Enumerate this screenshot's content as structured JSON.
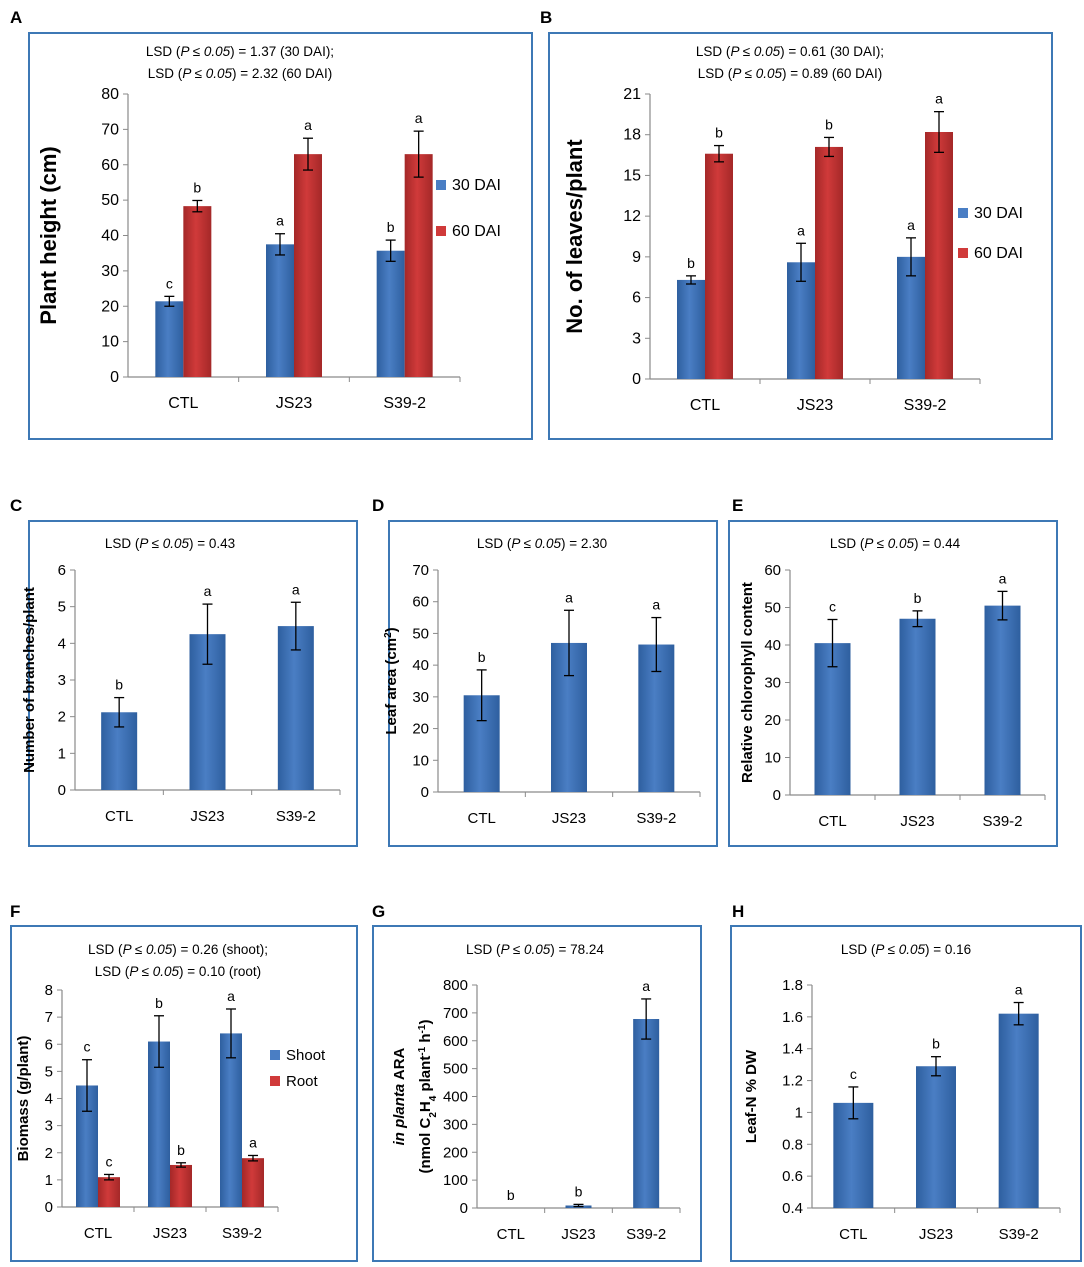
{
  "colors": {
    "frame": "#3d78b5",
    "blue": "#4a7ec4",
    "blue_dark": "#2e5f9f",
    "red": "#d03a3a",
    "red_dark": "#a42828"
  },
  "chart_data": [
    {
      "id": "A",
      "type": "bar",
      "panel_label": "A",
      "lsd_lines": [
        {
          "pre": "LSD (",
          "p": "P ≤ 0.05",
          "post": ") = 1.37 (30 DAI);"
        },
        {
          "pre": "LSD (",
          "p": "P ≤ 0.05",
          "post": ") = 2.32 (60 DAI)"
        }
      ],
      "ylabel": "Plant height (cm)",
      "ylabel_bold": true,
      "ylim": [
        0,
        80
      ],
      "yticks": [
        "0",
        "10",
        "20",
        "30",
        "40",
        "50",
        "60",
        "70",
        "80"
      ],
      "categories": [
        "CTL",
        "JS23",
        "S39-2"
      ],
      "series": [
        {
          "name": "30 DAI",
          "color": "blue",
          "values": [
            21.4,
            37.5,
            35.7
          ],
          "errors": [
            1.4,
            3.0,
            3.0
          ],
          "letters": [
            "c",
            "a",
            "b"
          ]
        },
        {
          "name": "60 DAI",
          "color": "red",
          "values": [
            48.3,
            63.0,
            63.0
          ],
          "errors": [
            1.6,
            4.5,
            6.5
          ],
          "letters": [
            "b",
            "a",
            "a"
          ]
        }
      ],
      "legend": [
        "30 DAI",
        "60 DAI"
      ]
    },
    {
      "id": "B",
      "type": "bar",
      "panel_label": "B",
      "lsd_lines": [
        {
          "pre": "LSD (",
          "p": "P ≤ 0.05",
          "post": ") = 0.61 (30 DAI);"
        },
        {
          "pre": "LSD (",
          "p": "P ≤ 0.05",
          "post": ") = 0.89 (60 DAI)"
        }
      ],
      "ylabel": "No. of leaves/plant",
      "ylabel_bold": true,
      "ylim": [
        0,
        21
      ],
      "yticks": [
        "0",
        "3",
        "6",
        "9",
        "12",
        "15",
        "18",
        "21"
      ],
      "categories": [
        "CTL",
        "JS23",
        "S39-2"
      ],
      "series": [
        {
          "name": "30 DAI",
          "color": "blue",
          "values": [
            7.3,
            8.6,
            9.0
          ],
          "errors": [
            0.3,
            1.4,
            1.4
          ],
          "letters": [
            "b",
            "a",
            "a"
          ]
        },
        {
          "name": "60 DAI",
          "color": "red",
          "values": [
            16.6,
            17.1,
            18.2
          ],
          "errors": [
            0.6,
            0.7,
            1.5
          ],
          "letters": [
            "b",
            "b",
            "a"
          ]
        }
      ],
      "legend": [
        "30 DAI",
        "60 DAI"
      ]
    },
    {
      "id": "C",
      "type": "bar",
      "panel_label": "C",
      "lsd_lines": [
        {
          "pre": "LSD (",
          "p": "P ≤ 0.05",
          "post": ") = 0.43"
        }
      ],
      "ylabel": "Number of branches/plant",
      "ylim": [
        0,
        6
      ],
      "yticks": [
        "0",
        "1",
        "2",
        "3",
        "4",
        "5",
        "6"
      ],
      "categories": [
        "CTL",
        "JS23",
        "S39-2"
      ],
      "series": [
        {
          "name": "",
          "color": "blue",
          "values": [
            2.12,
            4.25,
            4.47
          ],
          "errors": [
            0.4,
            0.82,
            0.65
          ],
          "letters": [
            "b",
            "a",
            "a"
          ]
        }
      ]
    },
    {
      "id": "D",
      "type": "bar",
      "panel_label": "D",
      "lsd_lines": [
        {
          "pre": "LSD (",
          "p": "P ≤ 0.05",
          "post": ") = 2.30"
        }
      ],
      "ylabel": "Leaf area (cm²)",
      "ylim": [
        0,
        70
      ],
      "yticks": [
        "0",
        "10",
        "20",
        "30",
        "40",
        "50",
        "60",
        "70"
      ],
      "categories": [
        "CTL",
        "JS23",
        "S39-2"
      ],
      "series": [
        {
          "name": "",
          "color": "blue",
          "values": [
            30.5,
            47.0,
            46.5
          ],
          "errors": [
            8.0,
            10.3,
            8.5
          ],
          "letters": [
            "b",
            "a",
            "a"
          ]
        }
      ]
    },
    {
      "id": "E",
      "type": "bar",
      "panel_label": "E",
      "lsd_lines": [
        {
          "pre": "LSD (",
          "p": "P ≤ 0.05",
          "post": ") = 0.44"
        }
      ],
      "ylabel": "Relative chlorophyll content",
      "ylim": [
        0,
        60
      ],
      "yticks": [
        "0",
        "10",
        "20",
        "30",
        "40",
        "50",
        "60"
      ],
      "categories": [
        "CTL",
        "JS23",
        "S39-2"
      ],
      "series": [
        {
          "name": "",
          "color": "blue",
          "values": [
            40.5,
            47.0,
            50.5
          ],
          "errors": [
            6.3,
            2.1,
            3.8
          ],
          "letters": [
            "c",
            "b",
            "a"
          ]
        }
      ]
    },
    {
      "id": "F",
      "type": "bar",
      "panel_label": "F",
      "lsd_lines": [
        {
          "pre": "LSD (",
          "p": "P ≤ 0.05",
          "post": ") = 0.26 (shoot);"
        },
        {
          "pre": "LSD (",
          "p": "P ≤ 0.05",
          "post": ") = 0.10 (root)"
        }
      ],
      "ylabel": "Biomass (g/plant)",
      "ylim": [
        0,
        8
      ],
      "yticks": [
        "0",
        "1",
        "2",
        "3",
        "4",
        "5",
        "6",
        "7",
        "8"
      ],
      "categories": [
        "CTL",
        "JS23",
        "S39-2"
      ],
      "series": [
        {
          "name": "Shoot",
          "color": "blue",
          "values": [
            4.48,
            6.1,
            6.4
          ],
          "errors": [
            0.95,
            0.95,
            0.9
          ],
          "letters": [
            "c",
            "b",
            "a"
          ]
        },
        {
          "name": "Root",
          "color": "red",
          "values": [
            1.1,
            1.55,
            1.8
          ],
          "errors": [
            0.1,
            0.08,
            0.1
          ],
          "letters": [
            "c",
            "b",
            "a"
          ]
        }
      ],
      "legend": [
        "Shoot",
        "Root"
      ]
    },
    {
      "id": "G",
      "type": "bar",
      "panel_label": "G",
      "lsd_lines": [
        {
          "pre": "LSD (",
          "p": "P ≤ 0.05",
          "post": ") = 78.24"
        }
      ],
      "ylabel_line1": "in planta ARA",
      "ylabel_line2": "(nmol C2H4 plant-1 h-1)",
      "ylim": [
        0,
        800
      ],
      "yticks": [
        "0",
        "100",
        "200",
        "300",
        "400",
        "500",
        "600",
        "700",
        "800"
      ],
      "categories": [
        "CTL",
        "JS23",
        "S39-2"
      ],
      "series": [
        {
          "name": "",
          "color": "blue",
          "values": [
            0,
            9,
            678
          ],
          "errors": [
            0,
            4,
            72
          ],
          "letters": [
            "b",
            "b",
            "a"
          ]
        }
      ]
    },
    {
      "id": "H",
      "type": "bar",
      "panel_label": "H",
      "lsd_lines": [
        {
          "pre": "LSD (",
          "p": "P ≤ 0.05",
          "post": ") = 0.16"
        }
      ],
      "ylabel": "Leaf-N % DW",
      "ylim": [
        0.4,
        1.8
      ],
      "yticks": [
        "0.4",
        "0.6",
        "0.8",
        "1",
        "1.2",
        "1.4",
        "1.6",
        "1.8"
      ],
      "categories": [
        "CTL",
        "JS23",
        "S39-2"
      ],
      "series": [
        {
          "name": "",
          "color": "blue",
          "values": [
            1.06,
            1.29,
            1.62
          ],
          "errors": [
            0.1,
            0.06,
            0.07
          ],
          "letters": [
            "c",
            "b",
            "a"
          ]
        }
      ]
    }
  ]
}
